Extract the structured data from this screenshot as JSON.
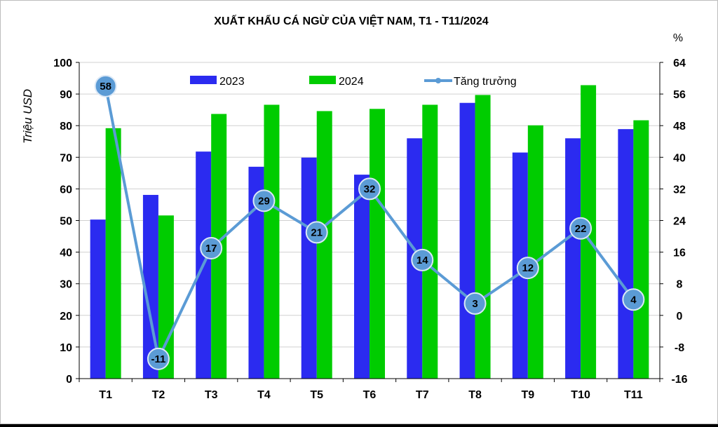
{
  "chart_data": {
    "type": "bar+line",
    "title": "XUẤT KHẨU CÁ NGỪ CỦA VIỆT NAM, T1 - T11/2024",
    "ylabel": "Triệu USD",
    "y2label": "%",
    "categories": [
      "T1",
      "T2",
      "T3",
      "T4",
      "T5",
      "T6",
      "T7",
      "T8",
      "T9",
      "T10",
      "T11"
    ],
    "ylim": [
      0,
      100
    ],
    "y2lim": [
      -16,
      64
    ],
    "yticks": [
      0,
      10,
      20,
      30,
      40,
      50,
      60,
      70,
      80,
      90,
      100
    ],
    "y2ticks": [
      -16,
      -8,
      0,
      8,
      16,
      24,
      32,
      40,
      48,
      56,
      64
    ],
    "grid": true,
    "legend_position": "top",
    "series": [
      {
        "name": "2023",
        "kind": "bar",
        "color": "#2b2bf0",
        "values": [
          50.3,
          58.1,
          71.8,
          67.0,
          69.9,
          64.5,
          76.0,
          87.2,
          71.5,
          76.0,
          78.9
        ]
      },
      {
        "name": "2024",
        "kind": "bar",
        "color": "#00cc00",
        "values": [
          79.2,
          51.6,
          83.7,
          86.6,
          84.6,
          85.3,
          86.6,
          89.7,
          80.1,
          92.8,
          81.7
        ]
      },
      {
        "name": "Tăng trưởng",
        "kind": "line",
        "axis": "right",
        "color": "#5b9bd5",
        "values": [
          58,
          -11,
          17,
          29,
          21,
          32,
          14,
          3,
          12,
          22,
          4
        ],
        "labels": [
          "58",
          "-11",
          "17",
          "29",
          "21",
          "32",
          "14",
          "3",
          "12",
          "22",
          "4"
        ]
      }
    ]
  }
}
